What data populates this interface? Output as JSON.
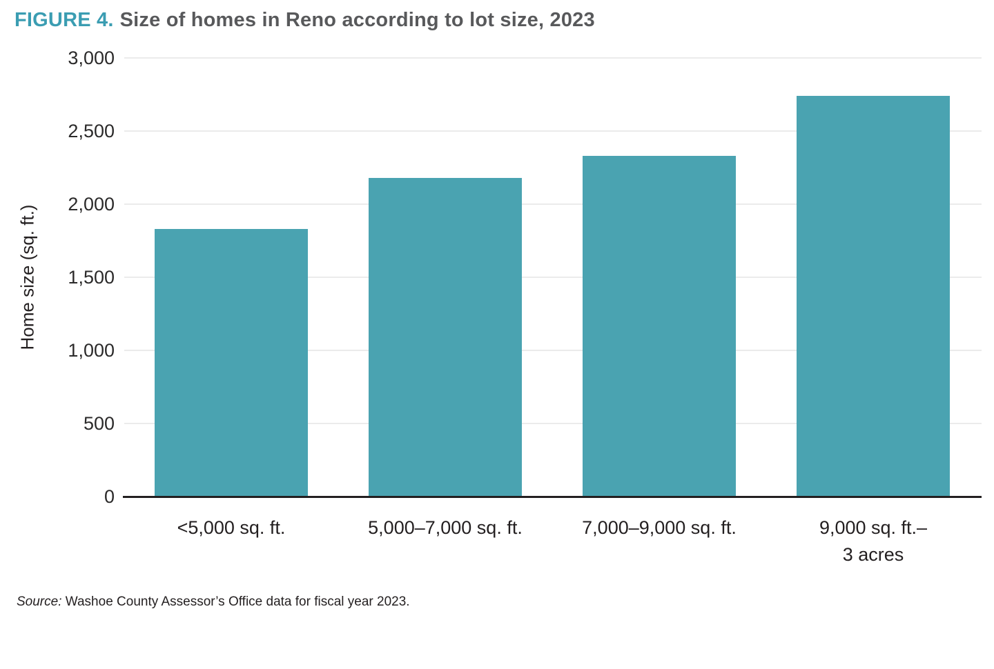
{
  "figure": {
    "label": "FIGURE 4.",
    "title": "Size of homes in Reno according to lot size, 2023"
  },
  "chart_data": {
    "type": "bar",
    "title": "Size of homes in Reno according to lot size, 2023",
    "categories": [
      "<5,000 sq. ft.",
      "5,000–7,000 sq. ft.",
      "7,000–9,000 sq. ft.",
      "9,000 sq. ft.–3 acres"
    ],
    "category_lines": [
      [
        "<5,000 sq. ft."
      ],
      [
        "5,000–7,000 sq. ft."
      ],
      [
        "7,000–9,000 sq. ft."
      ],
      [
        "9,000 sq. ft.–",
        "3 acres"
      ]
    ],
    "values": [
      1830,
      2180,
      2330,
      2740
    ],
    "xlabel": "",
    "ylabel": "Home size (sq. ft.)",
    "ylim": [
      0,
      3000
    ],
    "yticks": [
      0,
      500,
      1000,
      1500,
      2000,
      2500,
      3000
    ],
    "ytick_labels": [
      "0",
      "500",
      "1,000",
      "1,500",
      "2,000",
      "2,500",
      "3,000"
    ],
    "grid": true,
    "legend": false,
    "bar_color": "#4AA3B1"
  },
  "colors": {
    "figure_label": "#3B9DB2",
    "figure_title": "#58595B",
    "bar": "#4AA3B1",
    "gridline": "#EBEBEB",
    "axis_line": "#231F20",
    "tick_text": "#2B2A2A"
  },
  "source": {
    "prefix": "Source:",
    "text": " Washoe County Assessor’s Office data for fiscal year 2023."
  }
}
